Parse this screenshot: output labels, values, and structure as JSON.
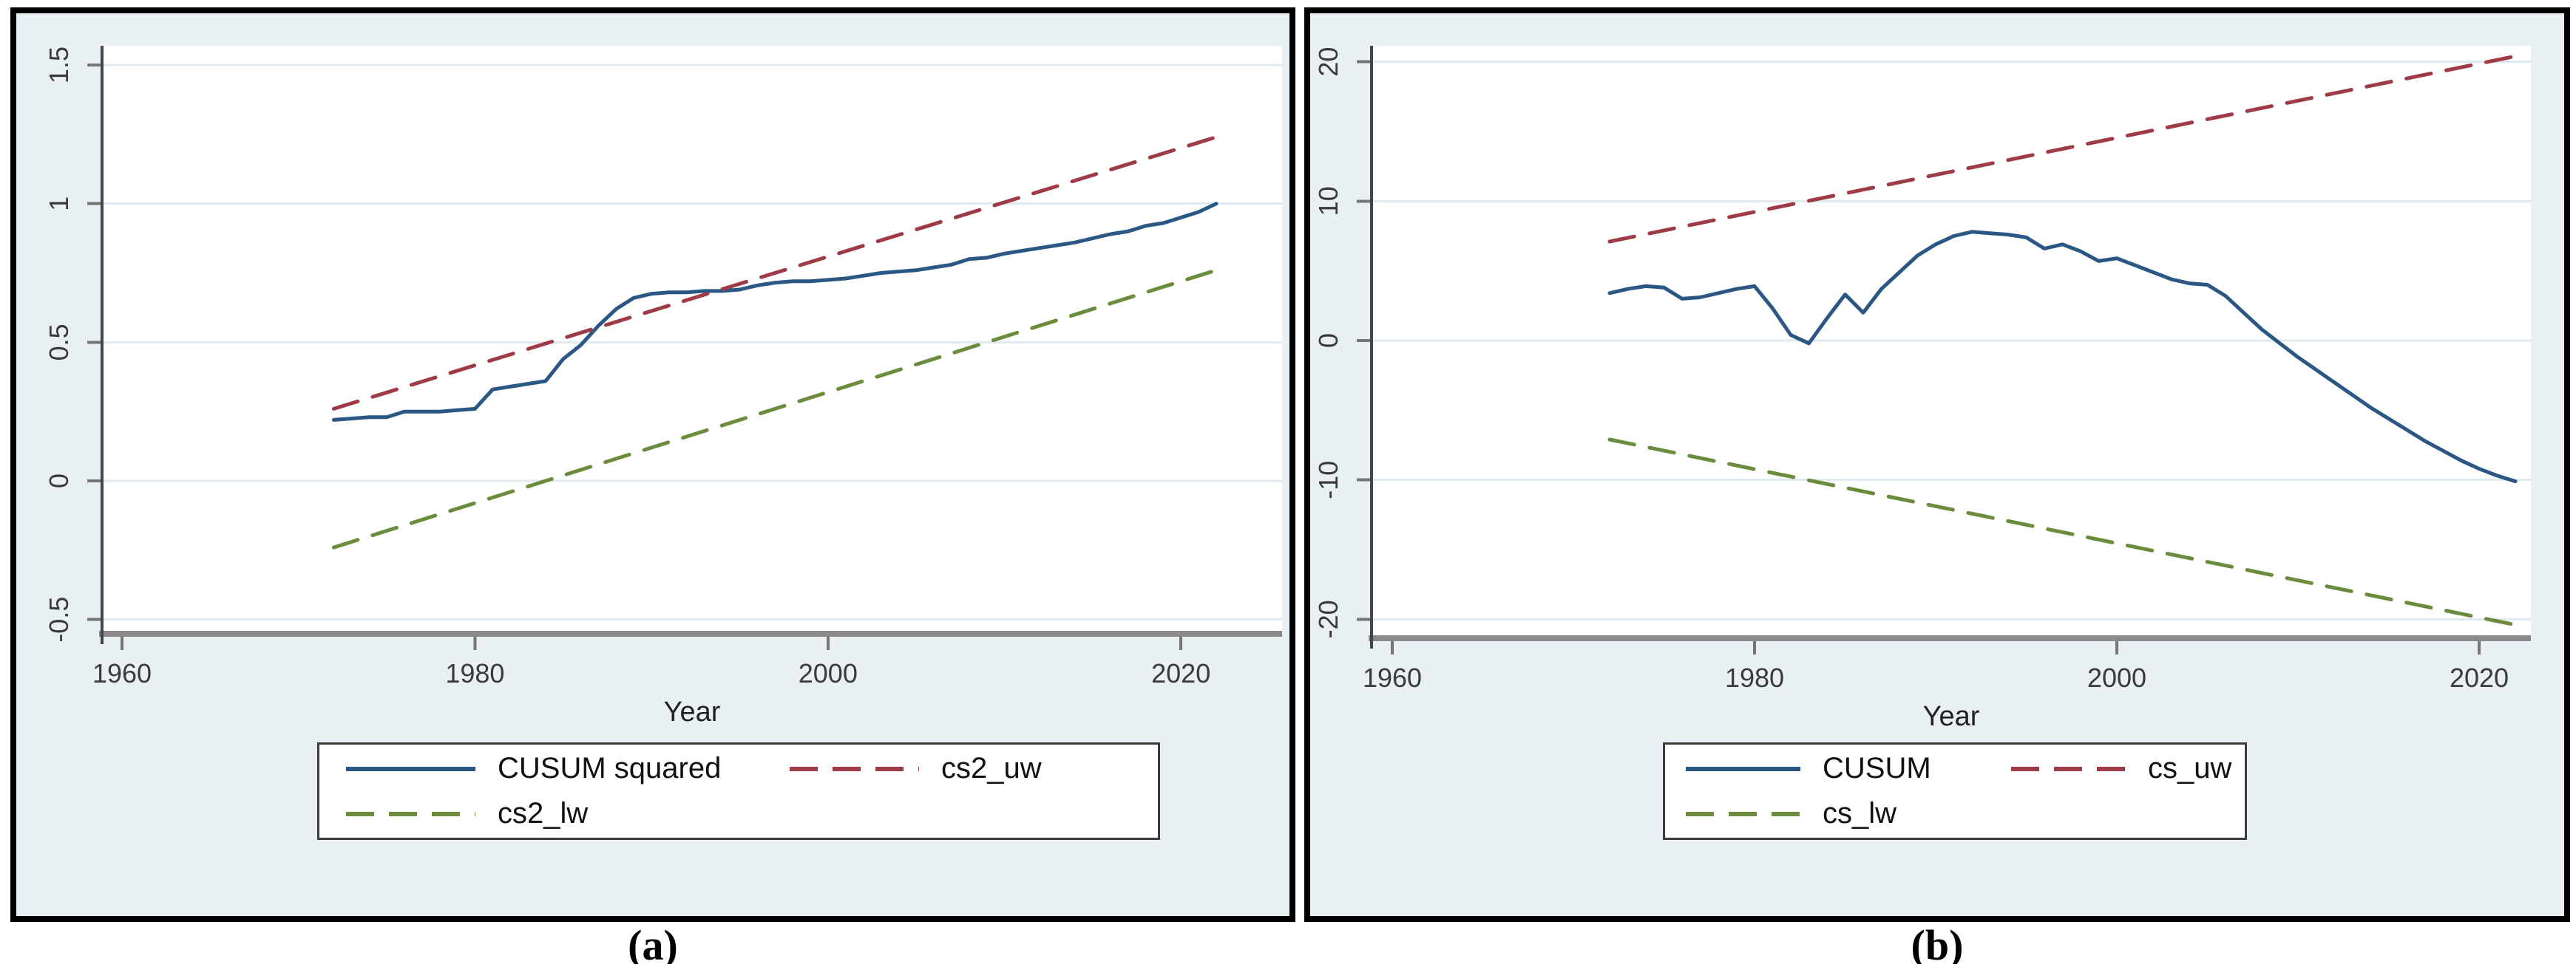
{
  "figure": {
    "caption_a": "(a)",
    "caption_b": "(b)",
    "colors": {
      "navy": "#2a5783",
      "maroon": "#9e3b46",
      "olive": "#6b8c3c",
      "panel_bg": "#e9f0f3",
      "plot_bg": "#ffffff",
      "grid": "#dfe9f0",
      "axis_line": "#454545",
      "baseline": "#8a8a8a",
      "tick": "#757575",
      "tick_text": "#3a3a3a",
      "legend_border": "#3c3c3c"
    }
  },
  "chart_data": [
    {
      "id": "a",
      "type": "line",
      "title": "",
      "xlabel": "Year",
      "ylabel": "",
      "xlim": [
        1958.8,
        2025.7
      ],
      "ylim": [
        -0.54,
        1.57
      ],
      "grid": "horizontal",
      "legend_position": "bottom",
      "x_ticks": [
        1960,
        1980,
        2000,
        2020
      ],
      "x_tick_labels": [
        "1960",
        "1980",
        "2000",
        "2020"
      ],
      "y_ticks": [
        -0.5,
        0,
        0.5,
        1,
        1.5
      ],
      "y_tick_labels": [
        "-0.5",
        "0",
        "0.5",
        "1",
        "1.5"
      ],
      "series": [
        {
          "name": "CUSUM squared",
          "color_key": "navy",
          "dash": "solid",
          "x": [
            1972,
            1973,
            1974,
            1975,
            1976,
            1977,
            1978,
            1979,
            1980,
            1981,
            1982,
            1983,
            1984,
            1985,
            1986,
            1987,
            1988,
            1989,
            1990,
            1991,
            1992,
            1993,
            1994,
            1995,
            1996,
            1997,
            1998,
            1999,
            2000,
            2001,
            2002,
            2003,
            2004,
            2005,
            2006,
            2007,
            2008,
            2009,
            2010,
            2011,
            2012,
            2013,
            2014,
            2015,
            2016,
            2017,
            2018,
            2019,
            2020,
            2021,
            2022
          ],
          "y": [
            0.22,
            0.225,
            0.23,
            0.23,
            0.25,
            0.25,
            0.25,
            0.255,
            0.26,
            0.33,
            0.34,
            0.35,
            0.36,
            0.44,
            0.49,
            0.56,
            0.62,
            0.66,
            0.675,
            0.68,
            0.68,
            0.685,
            0.685,
            0.69,
            0.705,
            0.715,
            0.72,
            0.72,
            0.725,
            0.73,
            0.74,
            0.75,
            0.755,
            0.76,
            0.77,
            0.78,
            0.8,
            0.805,
            0.82,
            0.83,
            0.84,
            0.85,
            0.86,
            0.875,
            0.89,
            0.9,
            0.92,
            0.93,
            0.95,
            0.97,
            1.0
          ]
        },
        {
          "name": "cs2_uw",
          "color_key": "maroon",
          "dash": "dash",
          "x": [
            1972,
            2022
          ],
          "y": [
            0.26,
            1.24
          ]
        },
        {
          "name": "cs2_lw",
          "color_key": "olive",
          "dash": "dash",
          "x": [
            1972,
            2022
          ],
          "y": [
            -0.24,
            0.76
          ]
        }
      ]
    },
    {
      "id": "b",
      "type": "line",
      "title": "",
      "xlabel": "Year",
      "ylabel": "",
      "xlim": [
        1958.9,
        2022.9
      ],
      "ylim": [
        -21.2,
        21.2
      ],
      "grid": "horizontal",
      "legend_position": "bottom",
      "x_ticks": [
        1960,
        1980,
        2000,
        2020
      ],
      "x_tick_labels": [
        "1960",
        "1980",
        "2000",
        "2020"
      ],
      "y_ticks": [
        -20,
        -10,
        0,
        10,
        20
      ],
      "y_tick_labels": [
        "-20",
        "-10",
        "0",
        "10",
        "20"
      ],
      "series": [
        {
          "name": "CUSUM",
          "color_key": "navy",
          "dash": "solid",
          "x": [
            1972,
            1973,
            1974,
            1975,
            1976,
            1977,
            1978,
            1979,
            1980,
            1981,
            1982,
            1983,
            1984,
            1985,
            1986,
            1987,
            1988,
            1989,
            1990,
            1991,
            1992,
            1993,
            1994,
            1995,
            1996,
            1997,
            1998,
            1999,
            2000,
            2001,
            2002,
            2003,
            2004,
            2005,
            2006,
            2007,
            2008,
            2009,
            2010,
            2011,
            2012,
            2013,
            2014,
            2015,
            2016,
            2017,
            2018,
            2019,
            2020,
            2021,
            2022
          ],
          "y": [
            3.4,
            3.7,
            3.9,
            3.8,
            3.0,
            3.1,
            3.4,
            3.7,
            3.9,
            2.3,
            0.4,
            -0.2,
            1.6,
            3.3,
            2.0,
            3.7,
            4.9,
            6.1,
            6.9,
            7.5,
            7.8,
            7.7,
            7.6,
            7.4,
            6.6,
            6.9,
            6.4,
            5.7,
            5.9,
            5.4,
            4.9,
            4.4,
            4.1,
            4.0,
            3.2,
            2.0,
            0.8,
            -0.2,
            -1.2,
            -2.1,
            -3.0,
            -3.9,
            -4.8,
            -5.6,
            -6.4,
            -7.2,
            -7.9,
            -8.6,
            -9.2,
            -9.7,
            -10.1
          ]
        },
        {
          "name": "cs_uw",
          "color_key": "maroon",
          "dash": "dash",
          "x": [
            1972,
            2022
          ],
          "y": [
            7.1,
            20.4
          ]
        },
        {
          "name": "cs_lw",
          "color_key": "olive",
          "dash": "dash",
          "x": [
            1972,
            2022
          ],
          "y": [
            -7.1,
            -20.4
          ]
        }
      ]
    }
  ]
}
